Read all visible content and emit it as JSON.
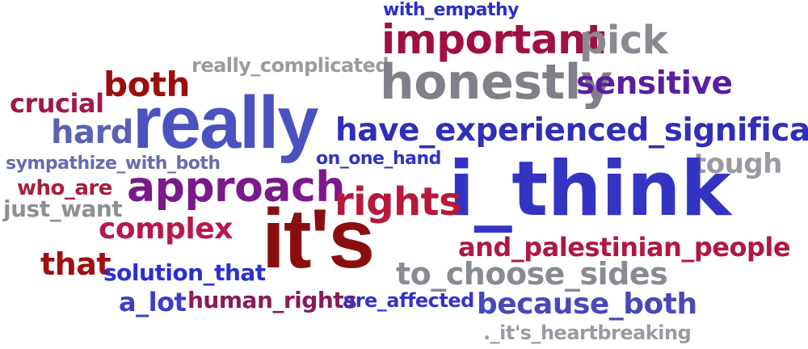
{
  "words": {
    "with_empathy": {
      "text": "with_empathy",
      "color": "#2b2fc4"
    },
    "important": {
      "text": "important",
      "color": "#a01040"
    },
    "pick": {
      "text": "pick",
      "color": "#8a8a92"
    },
    "really_complicated": {
      "text": "really_complicated",
      "color": "#9a9a9f"
    },
    "both": {
      "text": "both",
      "color": "#9a0e0e"
    },
    "honestly": {
      "text": "honestly",
      "color": "#80808a"
    },
    "sensitive": {
      "text": "sensitive",
      "color": "#5a1ea0"
    },
    "crucial": {
      "text": "crucial",
      "color": "#a0184a"
    },
    "really": {
      "text": "really",
      "color": "#4a52c0"
    },
    "hard": {
      "text": "hard",
      "color": "#5a62b4"
    },
    "have_experienced_significant": {
      "text": "have_experienced_significant",
      "color": "#2f2fb8"
    },
    "sympathize_with_both": {
      "text": "sympathize_with_both",
      "color": "#6a6ab0"
    },
    "on_one_hand": {
      "text": "on_one_hand",
      "color": "#2f34c2"
    },
    "tough": {
      "text": "tough",
      "color": "#9a9aa0"
    },
    "who_are": {
      "text": "who_are",
      "color": "#a81e3a"
    },
    "approach": {
      "text": "approach",
      "color": "#7a1a8a"
    },
    "i_think": {
      "text": "i_think",
      "color": "#3434c4"
    },
    "just_want": {
      "text": "just_want",
      "color": "#8e8e94"
    },
    "rights": {
      "text": "rights",
      "color": "#b8183a"
    },
    "complex": {
      "text": "complex",
      "color": "#b8184a"
    },
    "its": {
      "text": "it's",
      "color": "#8a0e10"
    },
    "and_palestinian_people": {
      "text": "and_palestinian_people",
      "color": "#b01840"
    },
    "that": {
      "text": "that",
      "color": "#a01010"
    },
    "solution_that": {
      "text": "solution_that",
      "color": "#2a2fd0"
    },
    "to_choose_sides": {
      "text": "to_choose_sides",
      "color": "#8a8a94"
    },
    "a_lot": {
      "text": "a_lot",
      "color": "#3a3ec8"
    },
    "human_rights": {
      "text": "human_rights",
      "color": "#8a1a5a"
    },
    "are_affected": {
      "text": "are_affected",
      "color": "#3434c4"
    },
    "because_both": {
      "text": "because_both",
      "color": "#4848b8"
    },
    "its_heartbreaking": {
      "text": "._it's_heartbreaking",
      "color": "#9a9aa4"
    }
  }
}
